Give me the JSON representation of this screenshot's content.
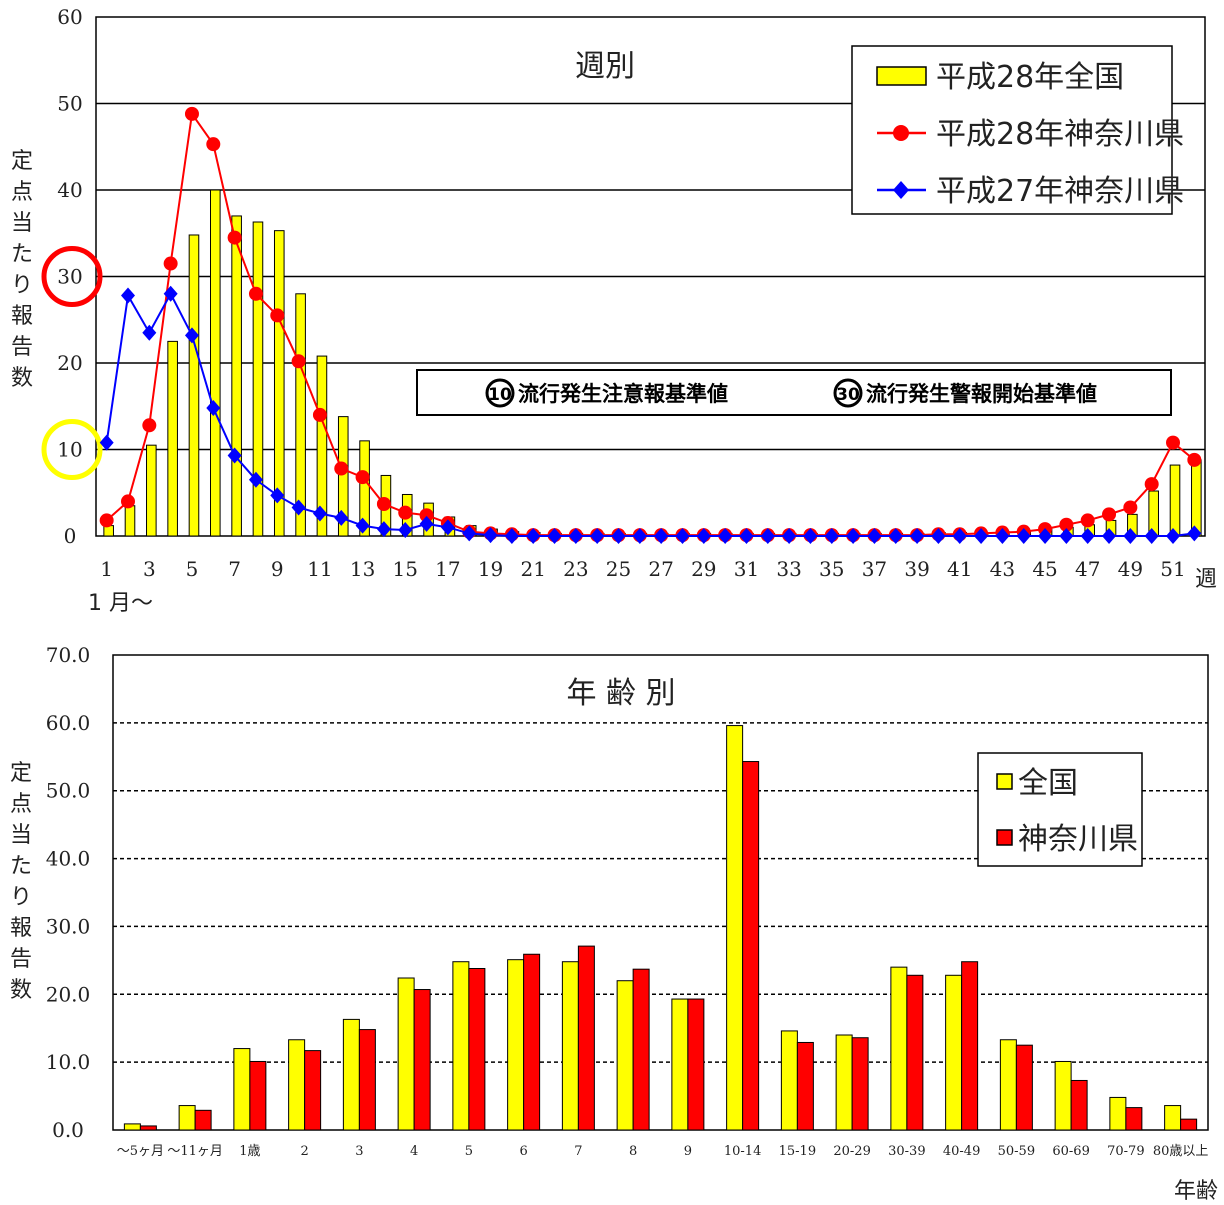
{
  "chart_data": [
    {
      "type": "bar+line",
      "title": "週別",
      "ylabel": "定点当たり報告数",
      "xlabel": "週",
      "x_start_note": "1 月～",
      "ylim": [
        0,
        60
      ],
      "yticks": [
        "0",
        "10",
        "20",
        "30",
        "40",
        "50",
        "60"
      ],
      "x": [
        1,
        2,
        3,
        4,
        5,
        6,
        7,
        8,
        9,
        10,
        11,
        12,
        13,
        14,
        15,
        16,
        17,
        18,
        19,
        20,
        21,
        22,
        23,
        24,
        25,
        26,
        27,
        28,
        29,
        30,
        31,
        32,
        33,
        34,
        35,
        36,
        37,
        38,
        39,
        40,
        41,
        42,
        43,
        44,
        45,
        46,
        47,
        48,
        49,
        50,
        51,
        52
      ],
      "xticks": [
        "1",
        "3",
        "5",
        "7",
        "9",
        "11",
        "13",
        "15",
        "17",
        "19",
        "21",
        "23",
        "25",
        "27",
        "29",
        "31",
        "33",
        "35",
        "37",
        "39",
        "41",
        "43",
        "45",
        "47",
        "49",
        "51"
      ],
      "series": [
        {
          "name": "平成28年全国",
          "kind": "bar",
          "color": "#ffff00",
          "values": [
            1.2,
            3.5,
            10.5,
            22.5,
            34.8,
            40.0,
            37.0,
            36.3,
            35.3,
            28.0,
            20.8,
            13.8,
            11.0,
            7.0,
            4.8,
            3.8,
            2.2,
            1.2,
            0.8,
            0.5,
            0.4,
            0.3,
            0.3,
            0.3,
            0.3,
            0.3,
            0.3,
            0.3,
            0.3,
            0.3,
            0.3,
            0.3,
            0.3,
            0.3,
            0.3,
            0.3,
            0.3,
            0.3,
            0.3,
            0.4,
            0.4,
            0.4,
            0.5,
            0.6,
            0.8,
            1.0,
            1.3,
            1.8,
            2.5,
            5.2,
            8.2,
            8.8
          ]
        },
        {
          "name": "平成28年神奈川県",
          "kind": "line",
          "color": "#ff0000",
          "values": [
            1.8,
            4.0,
            12.8,
            31.5,
            48.8,
            45.3,
            34.5,
            28.0,
            25.5,
            20.2,
            14.0,
            7.8,
            6.8,
            3.7,
            2.7,
            2.4,
            1.5,
            0.5,
            0.3,
            0.2,
            0.1,
            0.1,
            0.1,
            0.1,
            0.1,
            0.1,
            0.1,
            0.1,
            0.1,
            0.1,
            0.1,
            0.1,
            0.1,
            0.1,
            0.1,
            0.1,
            0.1,
            0.1,
            0.1,
            0.2,
            0.2,
            0.3,
            0.4,
            0.5,
            0.8,
            1.3,
            1.8,
            2.5,
            3.3,
            6.0,
            10.8,
            8.8
          ]
        },
        {
          "name": "平成27年神奈川県",
          "kind": "line",
          "color": "#0000ff",
          "values": [
            10.8,
            27.8,
            23.5,
            28.0,
            23.2,
            14.8,
            9.3,
            6.5,
            4.7,
            3.3,
            2.6,
            2.1,
            1.2,
            0.8,
            0.7,
            1.4,
            1.0,
            0.3,
            0.1,
            0.0,
            0.0,
            0.0,
            0.0,
            0.0,
            0.0,
            0.0,
            0.0,
            0.0,
            0.0,
            0.0,
            0.0,
            0.0,
            0.0,
            0.0,
            0.0,
            0.0,
            0.0,
            0.0,
            0.0,
            0.0,
            0.0,
            0.0,
            0.0,
            0.0,
            0.0,
            0.0,
            0.0,
            0.0,
            0.0,
            0.0,
            0.0,
            0.3
          ]
        }
      ],
      "legend_position": "top-right",
      "thresholds": [
        {
          "value": 10,
          "color": "#ffff00",
          "marker": "⑩",
          "label": "流行発生注意報基準値"
        },
        {
          "value": 30,
          "color": "#ff0000",
          "marker": "㉚",
          "label": "流行発生警報開始基準値"
        }
      ]
    },
    {
      "type": "bar",
      "title": "年 齢 別",
      "ylabel": "定点当たり報告数",
      "xlabel": "年齢",
      "ylim": [
        0,
        70
      ],
      "yticks": [
        "0.0",
        "10.0",
        "20.0",
        "30.0",
        "40.0",
        "50.0",
        "60.0",
        "70.0"
      ],
      "categories": [
        "～5ヶ月",
        "～11ヶ月",
        "1歳",
        "2",
        "3",
        "4",
        "5",
        "6",
        "7",
        "8",
        "9",
        "10-14",
        "15-19",
        "20-29",
        "30-39",
        "40-49",
        "50-59",
        "60-69",
        "70-79",
        "80歳以上"
      ],
      "series": [
        {
          "name": "全国",
          "color": "#ffff00",
          "values": [
            0.9,
            3.6,
            12.0,
            13.3,
            16.3,
            22.4,
            24.8,
            25.1,
            24.8,
            22.0,
            19.3,
            59.6,
            14.6,
            14.0,
            24.0,
            22.8,
            13.3,
            10.1,
            4.8,
            3.6
          ]
        },
        {
          "name": "神奈川県",
          "color": "#ff0000",
          "values": [
            0.6,
            2.9,
            10.1,
            11.7,
            14.8,
            20.7,
            23.8,
            25.9,
            27.1,
            23.7,
            19.3,
            54.3,
            12.9,
            13.6,
            22.8,
            24.8,
            12.5,
            7.3,
            3.3,
            1.6
          ]
        }
      ],
      "legend_position": "top-right",
      "grid": true
    }
  ]
}
